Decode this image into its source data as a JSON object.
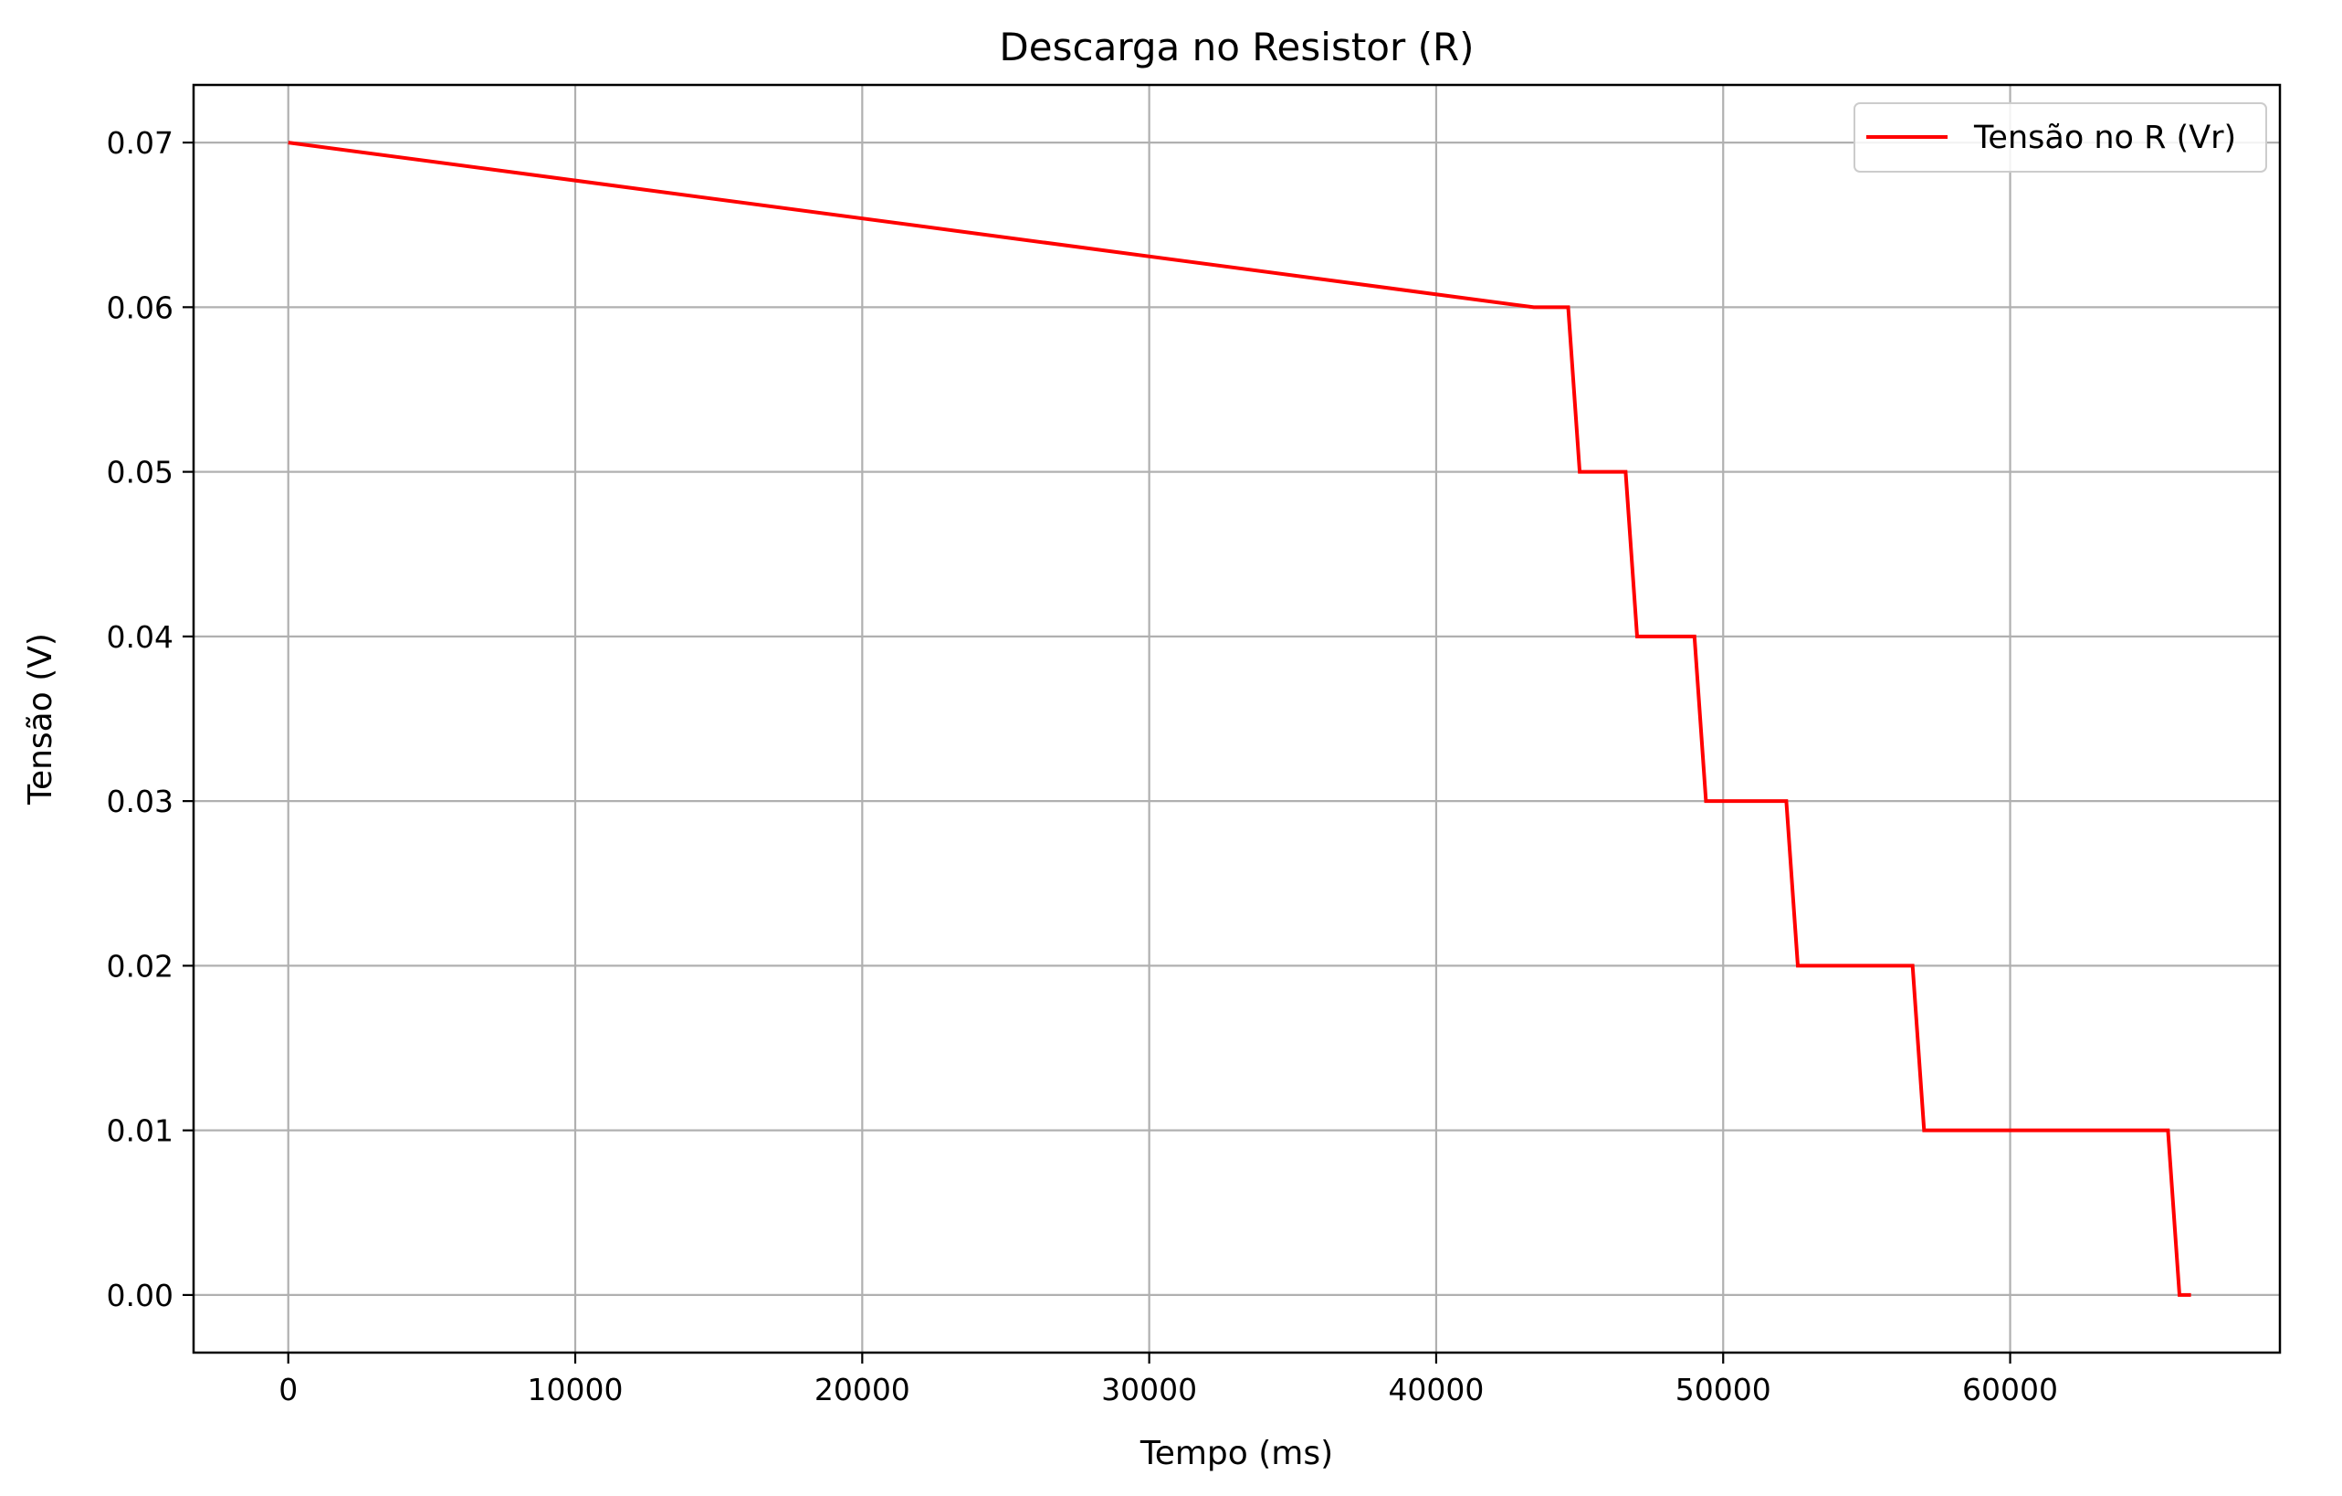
{
  "chart_data": {
    "type": "line",
    "title": "Descarga no Resistor (R)",
    "xlabel": "Tempo (ms)",
    "ylabel": "Tensão (V)",
    "xlim": [
      -3300,
      69400
    ],
    "ylim": [
      -0.0035,
      0.0735
    ],
    "xticks": [
      0,
      10000,
      20000,
      30000,
      40000,
      50000,
      60000
    ],
    "yticks": [
      0.0,
      0.01,
      0.02,
      0.03,
      0.04,
      0.05,
      0.06,
      0.07
    ],
    "ytick_labels": [
      "0.00",
      "0.01",
      "0.02",
      "0.03",
      "0.04",
      "0.05",
      "0.06",
      "0.07"
    ],
    "grid": true,
    "legend_position": "top-right",
    "series": [
      {
        "name": "Tensão no R (Vr)",
        "color": "#ff0000",
        "x": [
          0,
          43400,
          44600,
          45000,
          46600,
          47000,
          49000,
          49400,
          52200,
          52600,
          56600,
          57000,
          65500,
          65900,
          66300
        ],
        "y": [
          0.07,
          0.06,
          0.06,
          0.05,
          0.05,
          0.04,
          0.04,
          0.03,
          0.03,
          0.02,
          0.02,
          0.01,
          0.01,
          0.0,
          0.0
        ]
      }
    ]
  }
}
